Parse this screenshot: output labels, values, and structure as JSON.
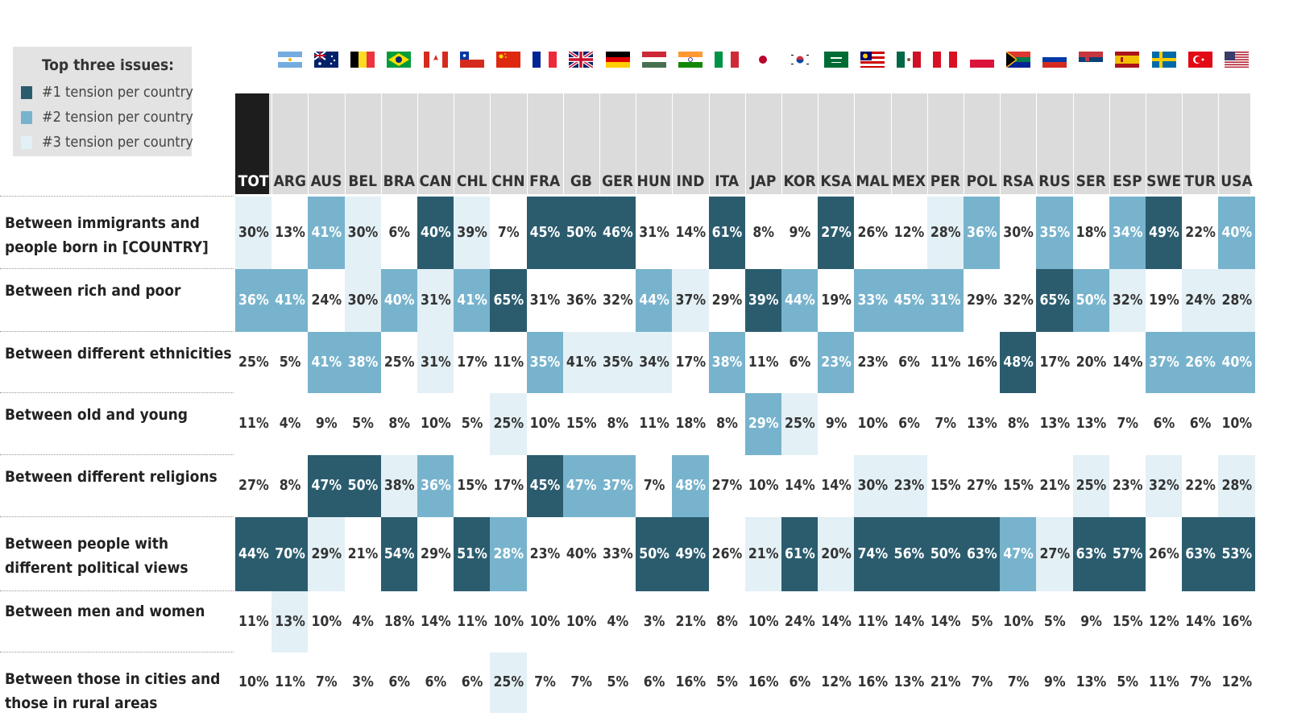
{
  "legend": {
    "title": "Top three issues:",
    "items": [
      {
        "label": "#1 tension per country",
        "color": "#2b5c6e"
      },
      {
        "label": "#2 tension per country",
        "color": "#78b3cd"
      },
      {
        "label": "#3 tension per country",
        "color": "#e3f0f6"
      }
    ]
  },
  "flags": [
    "argentina-flag-icon",
    "australia-flag-icon",
    "belgium-flag-icon",
    "brazil-flag-icon",
    "canada-flag-icon",
    "chile-flag-icon",
    "china-flag-icon",
    "france-flag-icon",
    "uk-flag-icon",
    "germany-flag-icon",
    "hungary-flag-icon",
    "india-flag-icon",
    "italy-flag-icon",
    "japan-flag-icon",
    "south-korea-flag-icon",
    "saudi-arabia-flag-icon",
    "malaysia-flag-icon",
    "mexico-flag-icon",
    "peru-flag-icon",
    "poland-flag-icon",
    "south-africa-flag-icon",
    "russia-flag-icon",
    "serbia-flag-icon",
    "spain-flag-icon",
    "sweden-flag-icon",
    "turkey-flag-icon",
    "usa-flag-icon"
  ],
  "chart_data": {
    "type": "table",
    "title": "Top three issues",
    "columns": [
      "TOT",
      "ARG",
      "AUS",
      "BEL",
      "BRA",
      "CAN",
      "CHL",
      "CHN",
      "FRA",
      "GB",
      "GER",
      "HUN",
      "IND",
      "ITA",
      "JAP",
      "KOR",
      "KSA",
      "MAL",
      "MEX",
      "PER",
      "POL",
      "RSA",
      "RUS",
      "SER",
      "ESP",
      "SWE",
      "TUR",
      "USA"
    ],
    "rows": [
      {
        "label": "Between immigrants and people born in [COUNTRY]",
        "values": [
          "30%",
          "13%",
          "41%",
          "30%",
          "6%",
          "40%",
          "39%",
          "7%",
          "45%",
          "50%",
          "46%",
          "31%",
          "14%",
          "61%",
          "8%",
          "9%",
          "27%",
          "26%",
          "12%",
          "28%",
          "36%",
          "30%",
          "35%",
          "18%",
          "34%",
          "49%",
          "22%",
          "40%"
        ],
        "ranks": [
          3,
          0,
          2,
          3,
          0,
          1,
          3,
          0,
          1,
          1,
          1,
          0,
          0,
          1,
          0,
          0,
          1,
          0,
          0,
          3,
          2,
          0,
          2,
          0,
          2,
          1,
          0,
          2
        ]
      },
      {
        "label": "Between rich and poor",
        "values": [
          "36%",
          "41%",
          "24%",
          "30%",
          "40%",
          "31%",
          "41%",
          "65%",
          "31%",
          "36%",
          "32%",
          "44%",
          "37%",
          "29%",
          "39%",
          "44%",
          "19%",
          "33%",
          "45%",
          "31%",
          "29%",
          "32%",
          "65%",
          "50%",
          "32%",
          "19%",
          "24%",
          "28%"
        ],
        "ranks": [
          2,
          2,
          0,
          3,
          2,
          3,
          2,
          1,
          0,
          0,
          0,
          2,
          3,
          0,
          1,
          2,
          0,
          2,
          2,
          2,
          0,
          0,
          1,
          2,
          3,
          0,
          3,
          3
        ]
      },
      {
        "label": "Between different ethnicities",
        "values": [
          "25%",
          "5%",
          "41%",
          "38%",
          "25%",
          "31%",
          "17%",
          "11%",
          "35%",
          "41%",
          "35%",
          "34%",
          "17%",
          "38%",
          "11%",
          "6%",
          "23%",
          "23%",
          "6%",
          "11%",
          "16%",
          "48%",
          "17%",
          "20%",
          "14%",
          "37%",
          "26%",
          "40%"
        ],
        "ranks": [
          0,
          0,
          2,
          2,
          0,
          3,
          0,
          0,
          2,
          3,
          3,
          3,
          0,
          2,
          0,
          0,
          2,
          0,
          0,
          0,
          0,
          1,
          0,
          0,
          0,
          2,
          2,
          2
        ]
      },
      {
        "label": "Between old and young",
        "values": [
          "11%",
          "4%",
          "9%",
          "5%",
          "8%",
          "10%",
          "5%",
          "25%",
          "10%",
          "15%",
          "8%",
          "11%",
          "18%",
          "8%",
          "29%",
          "25%",
          "9%",
          "10%",
          "6%",
          "7%",
          "13%",
          "8%",
          "13%",
          "13%",
          "7%",
          "6%",
          "6%",
          "10%"
        ],
        "ranks": [
          0,
          0,
          0,
          0,
          0,
          0,
          0,
          3,
          0,
          0,
          0,
          0,
          0,
          0,
          2,
          3,
          0,
          0,
          0,
          0,
          0,
          0,
          0,
          0,
          0,
          0,
          0,
          0
        ]
      },
      {
        "label": "Between different religions",
        "values": [
          "27%",
          "8%",
          "47%",
          "50%",
          "38%",
          "36%",
          "15%",
          "17%",
          "45%",
          "47%",
          "37%",
          "7%",
          "48%",
          "27%",
          "10%",
          "14%",
          "14%",
          "30%",
          "23%",
          "15%",
          "27%",
          "15%",
          "21%",
          "25%",
          "23%",
          "32%",
          "22%",
          "28%"
        ],
        "ranks": [
          0,
          0,
          1,
          1,
          3,
          2,
          0,
          0,
          1,
          2,
          2,
          0,
          2,
          0,
          0,
          0,
          0,
          3,
          3,
          0,
          0,
          0,
          0,
          3,
          0,
          3,
          0,
          3
        ]
      },
      {
        "label": "Between people with different political views",
        "values": [
          "44%",
          "70%",
          "29%",
          "21%",
          "54%",
          "29%",
          "51%",
          "28%",
          "23%",
          "40%",
          "33%",
          "50%",
          "49%",
          "26%",
          "21%",
          "61%",
          "20%",
          "74%",
          "56%",
          "50%",
          "63%",
          "47%",
          "27%",
          "63%",
          "57%",
          "26%",
          "63%",
          "53%"
        ],
        "ranks": [
          1,
          1,
          3,
          0,
          1,
          0,
          1,
          2,
          0,
          0,
          0,
          1,
          1,
          0,
          3,
          1,
          3,
          1,
          1,
          1,
          1,
          2,
          3,
          1,
          1,
          0,
          1,
          1
        ]
      },
      {
        "label": "Between men and women",
        "values": [
          "11%",
          "13%",
          "10%",
          "4%",
          "18%",
          "14%",
          "11%",
          "10%",
          "10%",
          "10%",
          "4%",
          "3%",
          "21%",
          "8%",
          "10%",
          "24%",
          "14%",
          "11%",
          "14%",
          "14%",
          "5%",
          "10%",
          "5%",
          "9%",
          "15%",
          "12%",
          "14%",
          "16%"
        ],
        "ranks": [
          0,
          3,
          0,
          0,
          0,
          0,
          0,
          0,
          0,
          0,
          0,
          0,
          0,
          0,
          0,
          0,
          0,
          0,
          0,
          0,
          0,
          0,
          0,
          0,
          0,
          0,
          0,
          0
        ]
      },
      {
        "label": "Between those in cities and those in rural areas",
        "values": [
          "10%",
          "11%",
          "7%",
          "3%",
          "6%",
          "6%",
          "6%",
          "25%",
          "7%",
          "7%",
          "5%",
          "6%",
          "16%",
          "5%",
          "16%",
          "6%",
          "12%",
          "16%",
          "13%",
          "21%",
          "7%",
          "7%",
          "9%",
          "13%",
          "5%",
          "11%",
          "7%",
          "12%"
        ],
        "ranks": [
          0,
          0,
          0,
          0,
          0,
          0,
          0,
          3,
          0,
          0,
          0,
          0,
          0,
          0,
          0,
          0,
          0,
          0,
          0,
          0,
          0,
          0,
          0,
          0,
          0,
          0,
          0,
          0
        ]
      }
    ],
    "rank_colors": [
      "#ffffff",
      "#2b5c6e",
      "#78b3cd",
      "#e3f0f6"
    ],
    "rank_text_colors": [
      "#333333",
      "#ffffff",
      "#ffffff",
      "#333333"
    ]
  }
}
